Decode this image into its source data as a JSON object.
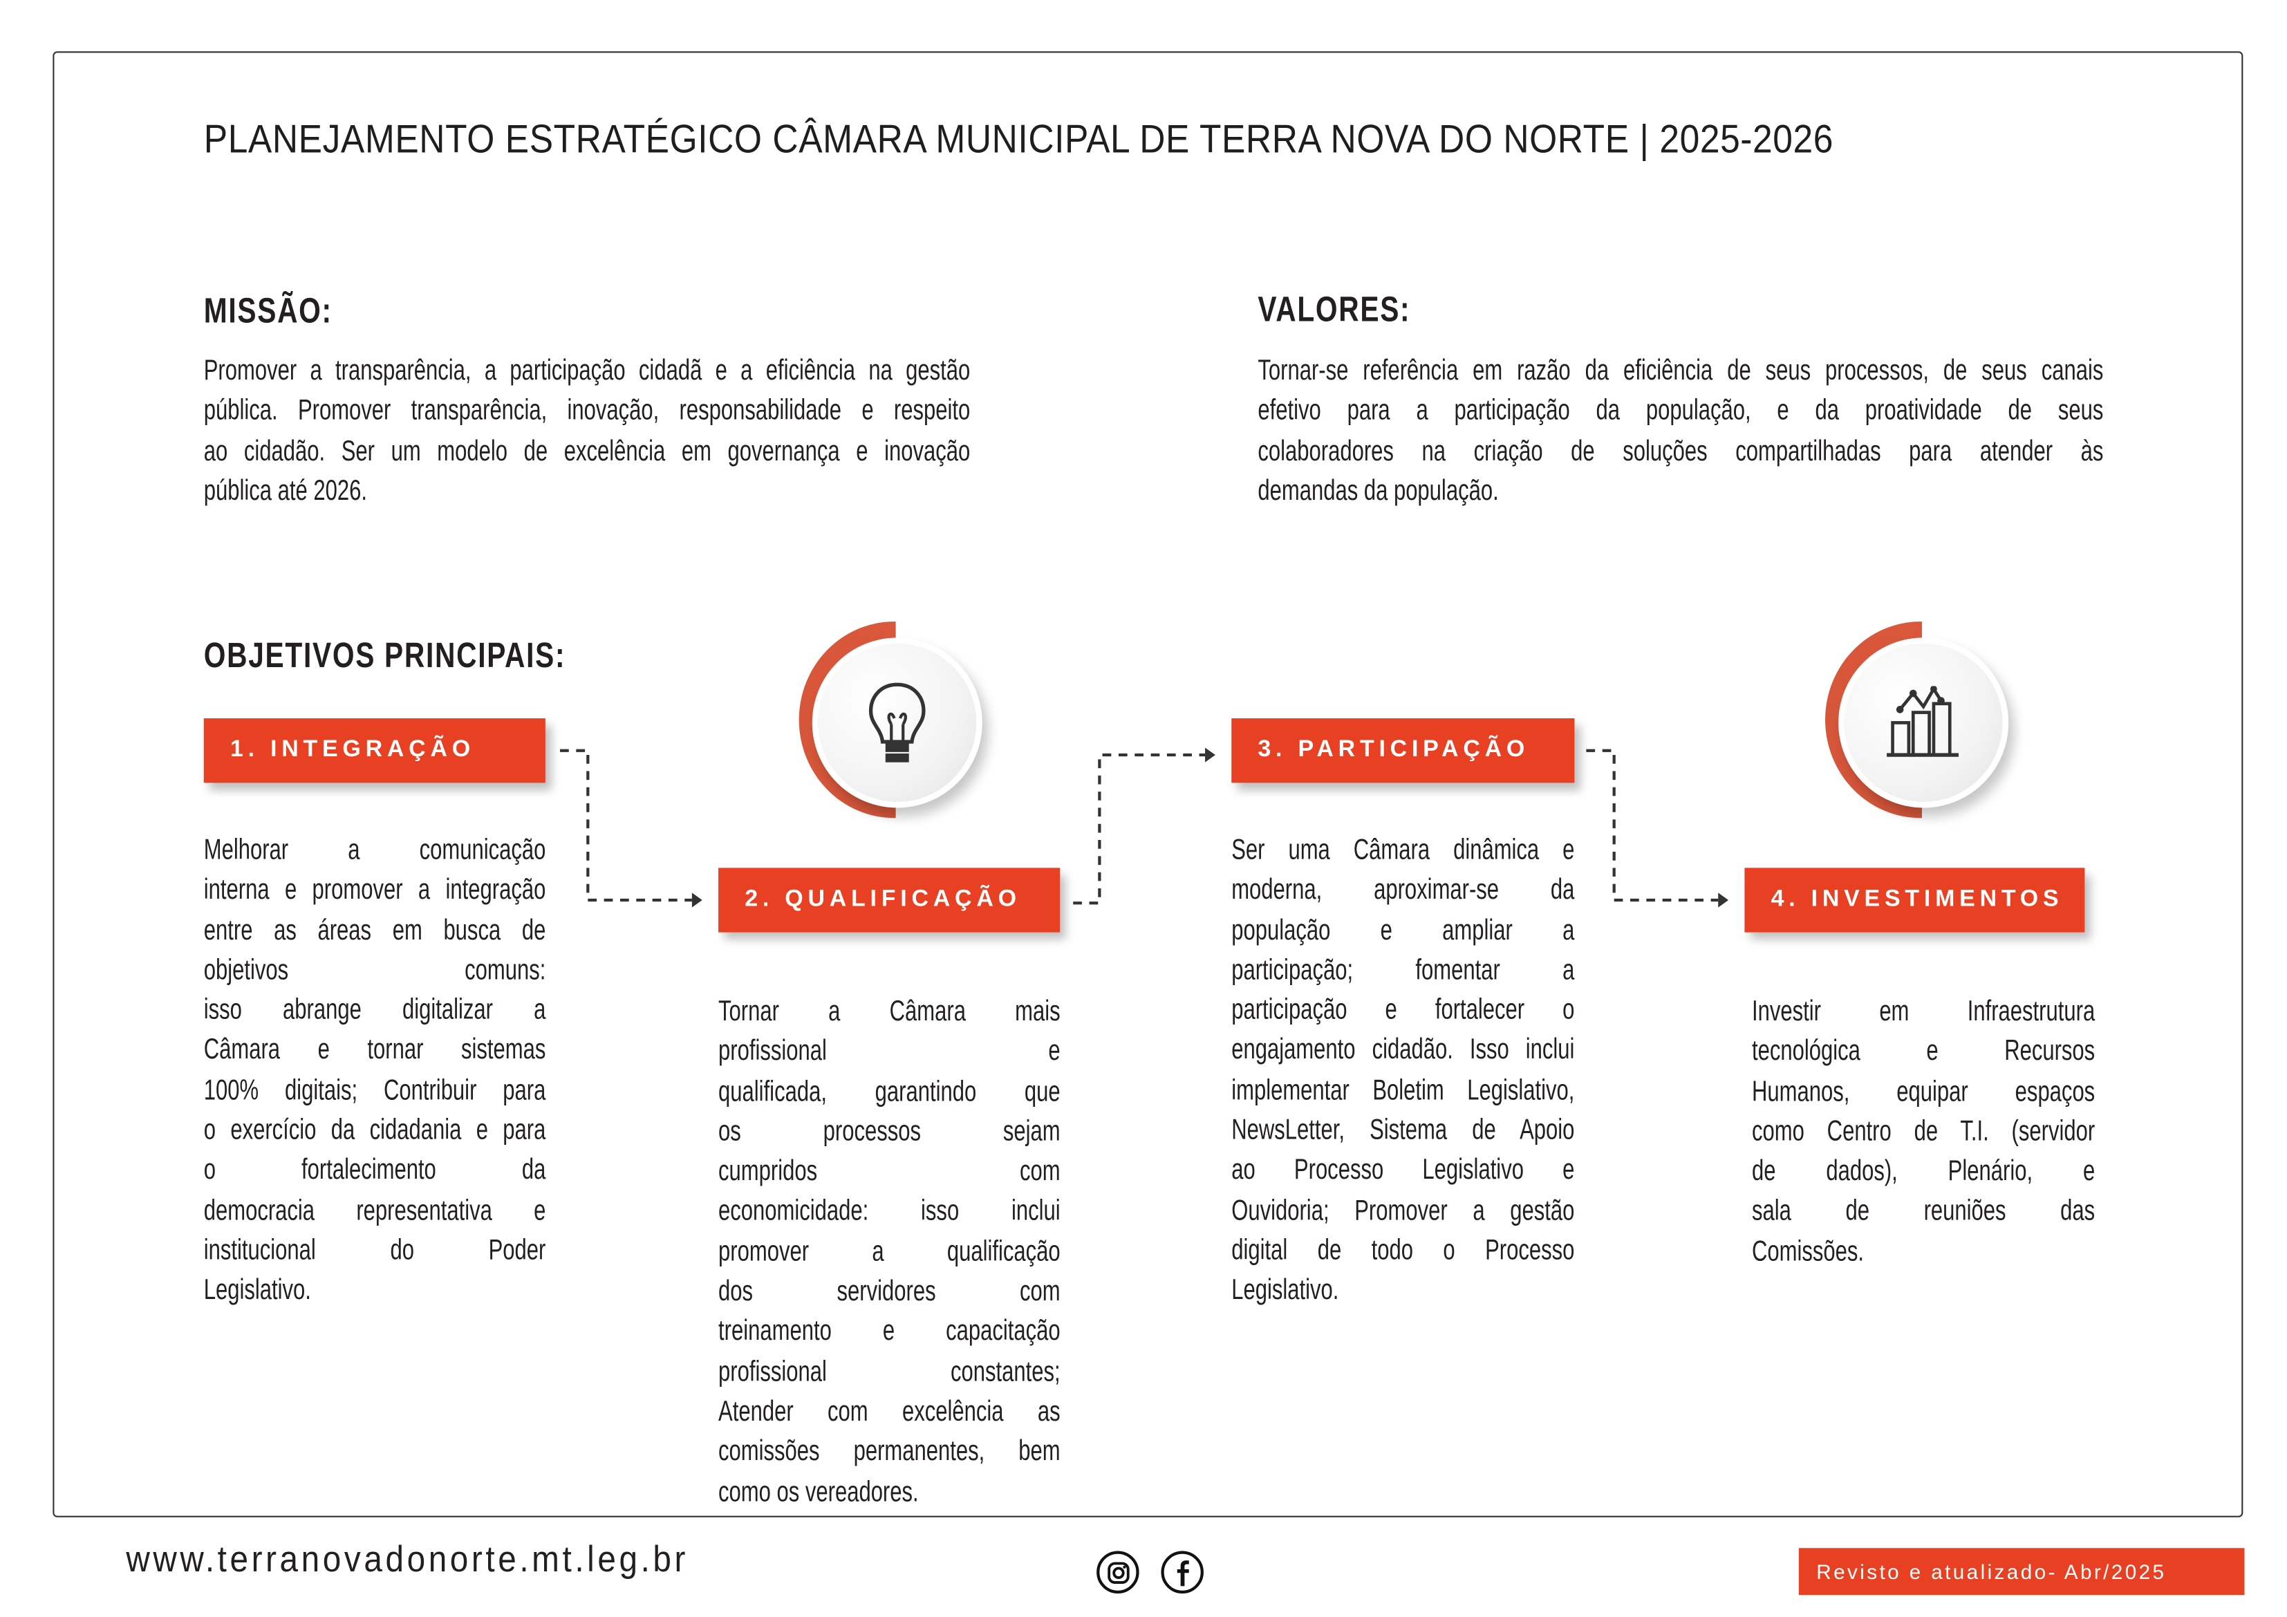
{
  "title": "PLANEJAMENTO ESTRATÉGICO CÂMARA MUNICIPAL DE TERRA NOVA DO NORTE | 2025-2026",
  "missao": {
    "heading": "MISSÃO:",
    "lines": [
      "Promover a transparência, a participação cidadã e a eficiência na gestão",
      "pública. Promover transparência, inovação, responsabilidade e respeito",
      "ao cidadão. Ser um modelo de excelência em governança e inovação",
      "pública até 2026."
    ]
  },
  "valores": {
    "heading": "VALORES:",
    "lines": [
      "Tornar-se referência em razão da eficiência de seus processos, de seus canais",
      "efetivo para a participação da população, e da proatividade de seus",
      "colaboradores na criação de soluções compartilhadas para atender às",
      "demandas da população."
    ]
  },
  "objetivos": {
    "heading": "OBJETIVOS PRINCIPAIS:",
    "items": [
      {
        "label": "1. INTEGRAÇÃO",
        "lines": [
          "Melhorar a comunicação",
          "interna e promover a integração",
          "entre as áreas em busca de",
          "objetivos comuns:",
          "isso abrange digitalizar a",
          "Câmara e tornar sistemas",
          "100% digitais; Contribuir para",
          "o exercício da cidadania e para",
          "o fortalecimento da",
          "democracia representativa e",
          "institucional do Poder",
          "Legislativo."
        ]
      },
      {
        "label": "2. QUALIFICAÇÃO",
        "lines": [
          "Tornar a Câmara mais",
          "profissional e",
          "qualificada, garantindo que",
          "os processos sejam",
          "cumpridos com",
          "economicidade: isso inclui",
          "promover a qualificação",
          "dos servidores com",
          "treinamento e capacitação",
          "profissional constantes;",
          "Atender com excelência as",
          "comissões permanentes, bem",
          "como os vereadores."
        ]
      },
      {
        "label": "3. PARTICIPAÇÃO",
        "lines": [
          "Ser uma Câmara dinâmica e",
          "moderna, aproximar-se da",
          "população e ampliar a",
          "participação; fomentar a",
          "participação e fortalecer o",
          "engajamento cidadão. Isso inclui",
          "implementar Boletim Legislativo,",
          "NewsLetter, Sistema de Apoio",
          "ao Processo Legislativo e",
          "Ouvidoria; Promover a gestão",
          "digital de todo o Processo",
          "Legislativo."
        ]
      },
      {
        "label": "4. INVESTIMENTOS",
        "lines": [
          "Investir em Infraestrutura",
          "tecnológica e Recursos",
          "Humanos, equipar espaços",
          "como Centro de T.I. (servidor",
          "de dados), Plenário, e",
          "sala de reuniões das",
          "Comissões."
        ]
      }
    ],
    "icons": [
      "lightbulb-icon",
      "bar-chart-growth-icon"
    ]
  },
  "footer": {
    "url": "www.terranovadonorte.mt.leg.br",
    "social_icons": [
      "instagram-icon",
      "facebook-icon"
    ],
    "badge": "Revisto e atualizado- Abr/2025"
  },
  "colors": {
    "accent": "#e84022",
    "arc": "#d9573a",
    "text": "#231f20"
  }
}
